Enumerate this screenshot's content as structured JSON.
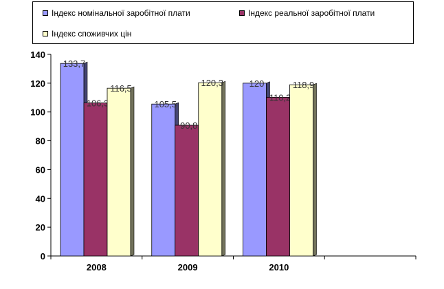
{
  "chart_data": {
    "type": "bar",
    "categories": [
      "2008",
      "2009",
      "2010"
    ],
    "series": [
      {
        "name": "Індекс номінальної заробітної плати",
        "values": [
          133.7,
          105.5,
          120
        ],
        "labels": [
          "133,7",
          "105,5",
          "120"
        ],
        "color": "#9999ff"
      },
      {
        "name": "Індекс реальної заробітної плати",
        "values": [
          106.3,
          90.8,
          110.2
        ],
        "labels": [
          "106,3",
          "90,8",
          "110,2"
        ],
        "color": "#993366"
      },
      {
        "name": "Індекс споживчих цін",
        "values": [
          116.5,
          120.3,
          118.9
        ],
        "labels": [
          "116,5",
          "120,3",
          "118,9"
        ],
        "color": "#ffffcc"
      }
    ],
    "yticks": [
      "0",
      "20",
      "40",
      "60",
      "80",
      "100",
      "120",
      "140"
    ],
    "ylim": [
      0,
      140
    ],
    "legend_position": "top",
    "grid": false
  }
}
